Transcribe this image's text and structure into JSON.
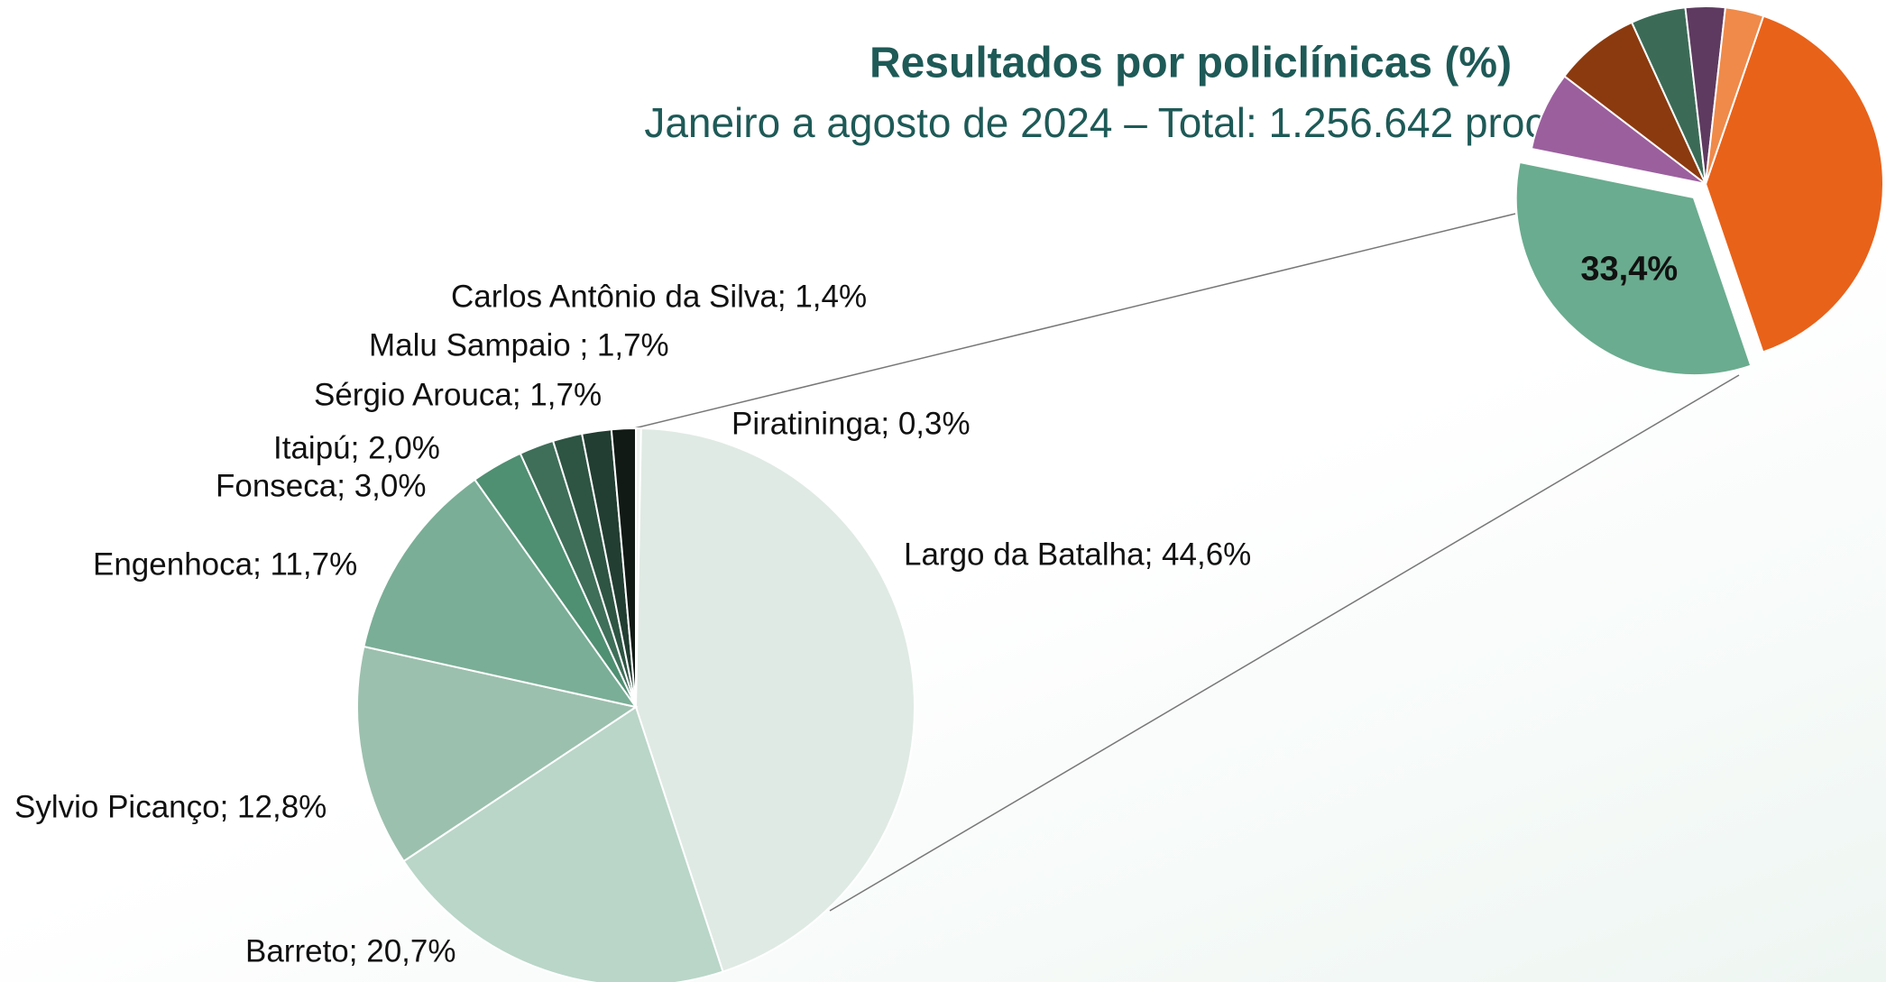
{
  "chart_data": [
    {
      "type": "pie",
      "title": "Resultados por policlínicas (%)",
      "subtitle": "Janeiro a agosto de 2024 – Total: 1.256.642 procedimentos",
      "categories": [
        "Piratininga; 0,3%",
        "Largo da Batalha; 44,6%",
        "Barreto; 20,7%",
        "Sylvio Picanço; 12,8%",
        "Engenhoca; 11,7%",
        "Fonseca; 3,0%",
        "Itaipú; 2,0%",
        "Sérgio Arouca; 1,7%",
        "Malu Sampaio ; 1,7%",
        "Carlos Antônio da Silva; 1,4%"
      ],
      "values": [
        0.3,
        44.6,
        20.7,
        12.8,
        11.7,
        3.0,
        2.0,
        1.7,
        1.7,
        1.4
      ],
      "colors": [
        "#eef4f0",
        "#e0eae4",
        "#b9d6c8",
        "#9cc0ae",
        "#7aae96",
        "#4f8f72",
        "#3f6e59",
        "#2e5443",
        "#223d31",
        "#111a15"
      ]
    },
    {
      "type": "pie",
      "categories": [
        null,
        null,
        null,
        null,
        null,
        null,
        null
      ],
      "values": [
        39.5,
        33.4,
        7.2,
        7.8,
        5.0,
        3.6,
        3.5
      ],
      "value_labels": [
        null,
        "33,4%",
        null,
        null,
        null,
        null,
        null
      ],
      "colors": [
        "#e8621a",
        "#6aac8f",
        "#9b5f9e",
        "#8b3a0f",
        "#3b6b57",
        "#5e3a60",
        "#ef8a4a"
      ]
    }
  ]
}
